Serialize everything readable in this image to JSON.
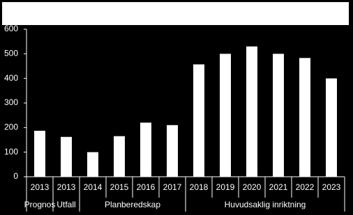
{
  "chart_data": {
    "type": "bar",
    "categories": [
      "2013",
      "2013",
      "2014",
      "2015",
      "2016",
      "2017",
      "2018",
      "2019",
      "2020",
      "2021",
      "2022",
      "2023"
    ],
    "values": [
      187,
      162,
      100,
      165,
      220,
      210,
      457,
      500,
      530,
      500,
      483,
      400
    ],
    "groups": [
      {
        "label": "Prognos",
        "count": 1
      },
      {
        "label": "Utfall",
        "count": 1
      },
      {
        "label": "Planberedskap",
        "count": 4
      },
      {
        "label": "Huvudsaklig inriktning",
        "count": 6
      }
    ],
    "color": "#ffffff",
    "ylim": [
      0,
      600
    ],
    "yticks": [
      0,
      100,
      200,
      300,
      400,
      500,
      600
    ],
    "grid": false
  }
}
